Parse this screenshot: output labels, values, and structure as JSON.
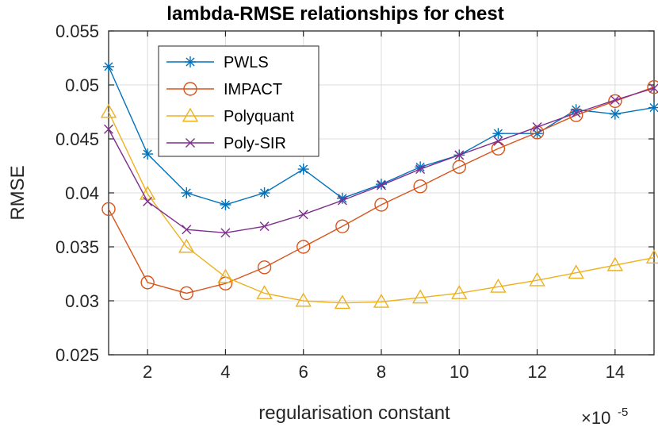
{
  "chart_data": {
    "type": "line",
    "title": "lambda-RMSE relationships for chest",
    "xlabel": "regularisation constant",
    "ylabel": "RMSE",
    "x_multiplier": "×10",
    "x_multiplier_exp": "-5",
    "xlim": [
      1,
      15
    ],
    "ylim": [
      0.025,
      0.055
    ],
    "xticks": [
      2,
      4,
      6,
      8,
      10,
      12,
      14
    ],
    "yticks": [
      0.025,
      0.03,
      0.035,
      0.04,
      0.045,
      0.05,
      0.055
    ],
    "ytick_labels": [
      "0.025",
      "0.03",
      "0.035",
      "0.04",
      "0.045",
      "0.05",
      "0.055"
    ],
    "grid": true,
    "legend_position": "top-left",
    "x": [
      1,
      2,
      3,
      4,
      5,
      6,
      7,
      8,
      9,
      10,
      11,
      12,
      13,
      14,
      15
    ],
    "series": [
      {
        "name": "PWLS",
        "color": "#0072BD",
        "marker": "asterisk",
        "values": [
          0.0517,
          0.0436,
          0.04,
          0.0389,
          0.04,
          0.0422,
          0.0395,
          0.0408,
          0.0424,
          0.0435,
          0.0455,
          0.0455,
          0.0477,
          0.0473,
          0.0479
        ]
      },
      {
        "name": "IMPACT",
        "color": "#D95319",
        "marker": "circle",
        "values": [
          0.0385,
          0.0317,
          0.0307,
          0.0316,
          0.0331,
          0.035,
          0.0369,
          0.0389,
          0.0406,
          0.0424,
          0.0441,
          0.0456,
          0.0472,
          0.0485,
          0.0498
        ]
      },
      {
        "name": "Polyquant",
        "color": "#EDB120",
        "marker": "triangle",
        "values": [
          0.0475,
          0.0399,
          0.035,
          0.0322,
          0.0307,
          0.03,
          0.0298,
          0.0299,
          0.0303,
          0.0307,
          0.0313,
          0.0319,
          0.0326,
          0.0333,
          0.034
        ]
      },
      {
        "name": "Poly-SIR",
        "color": "#7E2F8E",
        "marker": "cross",
        "values": [
          0.0459,
          0.0392,
          0.0366,
          0.0363,
          0.0369,
          0.038,
          0.0393,
          0.0407,
          0.0422,
          0.0435,
          0.0448,
          0.0461,
          0.0474,
          0.0486,
          0.0497
        ]
      }
    ]
  }
}
